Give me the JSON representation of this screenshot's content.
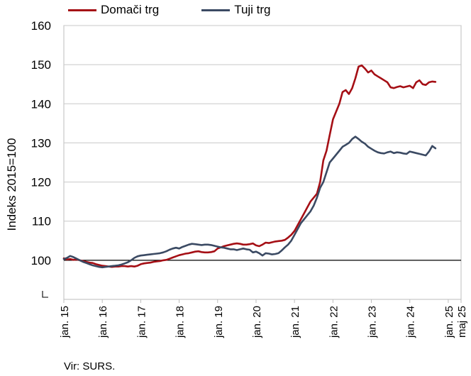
{
  "legend": {
    "domestic_label": "Domači trg",
    "foreign_label": "Tuji trg"
  },
  "source": "Vir: SURS.",
  "chart_data": {
    "type": "line",
    "ylabel": "Indeks 2015=100",
    "ylim": [
      90,
      160
    ],
    "yticks": [
      100,
      110,
      120,
      130,
      140,
      150,
      160
    ],
    "x_start": "2015-01",
    "x_end": "2025-05",
    "xtick_labels": [
      "jan. 15",
      "jan. 16",
      "jan. 17",
      "jan. 18",
      "jan. 19",
      "jan. 20",
      "jan. 21",
      "jan. 22",
      "jan. 23",
      "jan. 24",
      "jan. 25",
      "maj 25"
    ],
    "reference_line": 100,
    "axis_break": true,
    "colors": {
      "domestic": "#a50f15",
      "foreign": "#3b4a63",
      "reference": "#000000"
    },
    "series": [
      {
        "name": "Domači trg",
        "key": "domestic",
        "values": [
          100.5,
          100.2,
          100.3,
          100.1,
          100.2,
          100.0,
          99.8,
          99.6,
          99.4,
          99.3,
          99.0,
          98.8,
          98.6,
          98.5,
          98.4,
          98.3,
          98.4,
          98.4,
          98.5,
          98.5,
          98.4,
          98.5,
          98.4,
          98.6,
          99.0,
          99.2,
          99.3,
          99.4,
          99.6,
          99.7,
          99.8,
          100.0,
          100.1,
          100.4,
          100.7,
          101.0,
          101.3,
          101.5,
          101.7,
          101.8,
          102.0,
          102.2,
          102.3,
          102.1,
          102.0,
          102.0,
          102.1,
          102.3,
          103.0,
          103.3,
          103.6,
          103.8,
          104.0,
          104.2,
          104.3,
          104.2,
          104.0,
          104.0,
          104.1,
          104.3,
          103.8,
          103.6,
          104.0,
          104.5,
          104.4,
          104.6,
          104.8,
          104.9,
          105.0,
          105.2,
          105.8,
          106.5,
          107.5,
          109.0,
          110.5,
          112.0,
          113.5,
          115.0,
          116.0,
          117.0,
          120.0,
          125.5,
          128.0,
          132.0,
          136.0,
          138.0,
          140.0,
          143.0,
          143.5,
          142.5,
          144.0,
          146.5,
          149.5,
          149.8,
          149.0,
          148.0,
          148.5,
          147.5,
          147.0,
          146.5,
          146.0,
          145.5,
          144.2,
          144.0,
          144.3,
          144.5,
          144.2,
          144.4,
          144.6,
          144.0,
          145.5,
          146.0,
          145.0,
          144.8,
          145.5,
          145.7,
          145.6
        ]
      },
      {
        "name": "Tuji trg",
        "key": "foreign",
        "values": [
          100.3,
          100.6,
          101.1,
          100.8,
          100.4,
          100.0,
          99.6,
          99.3,
          99.0,
          98.7,
          98.5,
          98.3,
          98.2,
          98.3,
          98.4,
          98.5,
          98.6,
          98.7,
          98.9,
          99.2,
          99.5,
          100.0,
          100.6,
          101.0,
          101.2,
          101.3,
          101.4,
          101.5,
          101.6,
          101.7,
          101.8,
          102.0,
          102.3,
          102.7,
          103.0,
          103.2,
          103.0,
          103.4,
          103.7,
          104.0,
          104.2,
          104.1,
          104.0,
          103.9,
          104.0,
          104.0,
          103.9,
          103.7,
          103.5,
          103.3,
          103.2,
          103.0,
          102.8,
          102.8,
          102.6,
          102.8,
          103.0,
          102.8,
          102.7,
          102.0,
          102.2,
          101.8,
          101.2,
          101.8,
          101.7,
          101.5,
          101.6,
          101.8,
          102.5,
          103.3,
          104.0,
          105.0,
          106.5,
          108.0,
          109.5,
          110.5,
          111.5,
          112.5,
          114.0,
          116.0,
          118.5,
          120.0,
          122.5,
          125.0,
          126.0,
          127.0,
          128.0,
          129.0,
          129.5,
          130.0,
          131.0,
          131.6,
          131.0,
          130.3,
          129.8,
          129.0,
          128.5,
          128.0,
          127.6,
          127.4,
          127.3,
          127.6,
          127.8,
          127.4,
          127.6,
          127.5,
          127.3,
          127.2,
          127.8,
          127.6,
          127.4,
          127.2,
          127.0,
          126.8,
          127.8,
          129.2,
          128.6
        ]
      }
    ]
  }
}
